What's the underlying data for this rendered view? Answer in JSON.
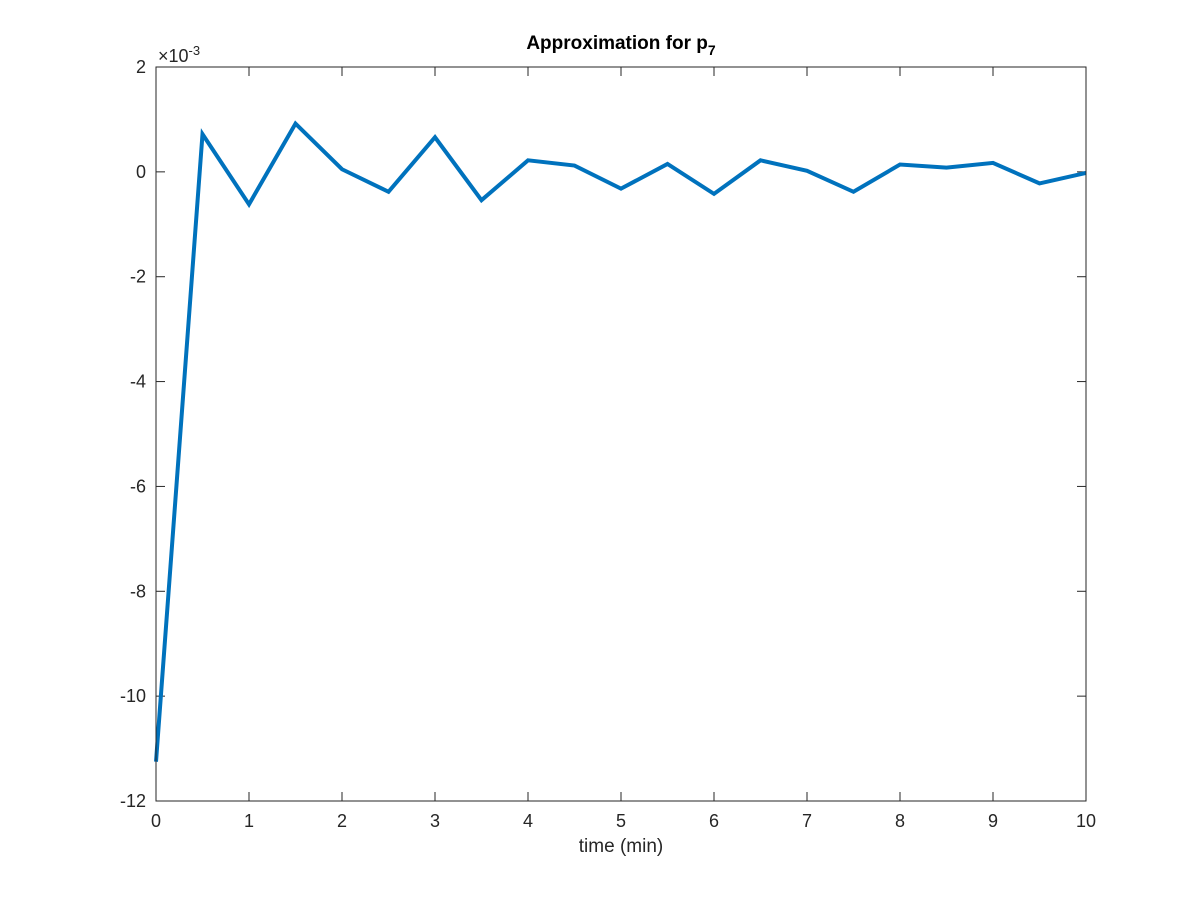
{
  "chart_data": {
    "type": "line",
    "title": "Approximation for p",
    "title_subscript": "7",
    "xlabel": "time (min)",
    "ylabel": "",
    "y_exponent_base": "×10",
    "y_exponent_power": "-3",
    "xlim": [
      0,
      10
    ],
    "ylim": [
      -12,
      2
    ],
    "x_ticks": [
      0,
      1,
      2,
      3,
      4,
      5,
      6,
      7,
      8,
      9,
      10
    ],
    "y_ticks": [
      -12,
      -10,
      -8,
      -6,
      -4,
      -2,
      0,
      2
    ],
    "grid": false,
    "series": [
      {
        "color": "#0072BD",
        "x": [
          0,
          0.5,
          1,
          1.5,
          2,
          2.5,
          3,
          3.5,
          4,
          4.5,
          5,
          5.5,
          6,
          6.5,
          7,
          7.5,
          8,
          8.5,
          9,
          9.5,
          10
        ],
        "values": [
          -11.25,
          0.72,
          -0.62,
          0.92,
          0.05,
          -0.38,
          0.66,
          -0.54,
          0.22,
          0.12,
          -0.32,
          0.15,
          -0.42,
          0.22,
          0.02,
          -0.38,
          0.14,
          0.08,
          0.17,
          -0.22,
          -0.02
        ]
      }
    ]
  }
}
